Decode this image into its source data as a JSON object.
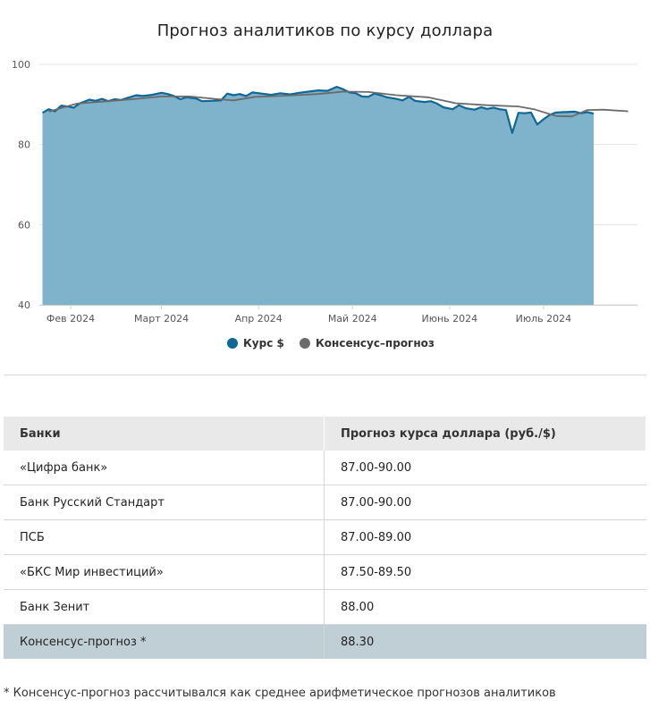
{
  "chart_data": {
    "type": "area",
    "title": "Прогноз аналитиков по курсу доллара",
    "ylim": [
      40,
      100
    ],
    "yticks": [
      "100",
      "80",
      "60",
      "40"
    ],
    "xlim": [
      "2024-01-22",
      "2024-07-31"
    ],
    "xticks": [
      {
        "date": "2024-02-01",
        "label": "Фев 2024"
      },
      {
        "date": "2024-03-01",
        "label": "Март 2024"
      },
      {
        "date": "2024-04-01",
        "label": "Апр 2024"
      },
      {
        "date": "2024-05-01",
        "label": "Май 2024"
      },
      {
        "date": "2024-06-01",
        "label": "Июнь 2024"
      },
      {
        "date": "2024-07-01",
        "label": "Июль 2024"
      }
    ],
    "grid": true,
    "legend_position": "bottom-center",
    "series": [
      {
        "name": "Курс $",
        "type": "area",
        "color": "#0e6796",
        "fill": "#7fb2cb",
        "points": [
          [
            "2024-01-23",
            87.9
          ],
          [
            "2024-01-25",
            88.8
          ],
          [
            "2024-01-27",
            88.3
          ],
          [
            "2024-01-29",
            89.7
          ],
          [
            "2024-01-31",
            89.5
          ],
          [
            "2024-02-02",
            89.2
          ],
          [
            "2024-02-04",
            90.3
          ],
          [
            "2024-02-07",
            91.2
          ],
          [
            "2024-02-09",
            90.9
          ],
          [
            "2024-02-11",
            91.4
          ],
          [
            "2024-02-13",
            90.8
          ],
          [
            "2024-02-15",
            91.3
          ],
          [
            "2024-02-17",
            91.1
          ],
          [
            "2024-02-19",
            91.6
          ],
          [
            "2024-02-22",
            92.3
          ],
          [
            "2024-02-24",
            92.1
          ],
          [
            "2024-02-27",
            92.4
          ],
          [
            "2024-03-01",
            92.9
          ],
          [
            "2024-03-03",
            92.6
          ],
          [
            "2024-03-05",
            92.1
          ],
          [
            "2024-03-07",
            91.3
          ],
          [
            "2024-03-09",
            91.8
          ],
          [
            "2024-03-12",
            91.5
          ],
          [
            "2024-03-14",
            90.8
          ],
          [
            "2024-03-17",
            90.9
          ],
          [
            "2024-03-20",
            91.0
          ],
          [
            "2024-03-22",
            92.7
          ],
          [
            "2024-03-24",
            92.3
          ],
          [
            "2024-03-26",
            92.6
          ],
          [
            "2024-03-28",
            92.1
          ],
          [
            "2024-03-30",
            93.0
          ],
          [
            "2024-04-02",
            92.7
          ],
          [
            "2024-04-05",
            92.4
          ],
          [
            "2024-04-08",
            92.8
          ],
          [
            "2024-04-11",
            92.5
          ],
          [
            "2024-04-14",
            92.9
          ],
          [
            "2024-04-17",
            93.2
          ],
          [
            "2024-04-20",
            93.5
          ],
          [
            "2024-04-23",
            93.4
          ],
          [
            "2024-04-26",
            94.4
          ],
          [
            "2024-04-28",
            93.8
          ],
          [
            "2024-04-30",
            93.0
          ],
          [
            "2024-05-02",
            92.8
          ],
          [
            "2024-05-04",
            92.0
          ],
          [
            "2024-05-06",
            91.9
          ],
          [
            "2024-05-08",
            92.7
          ],
          [
            "2024-05-10",
            92.3
          ],
          [
            "2024-05-12",
            91.8
          ],
          [
            "2024-05-15",
            91.4
          ],
          [
            "2024-05-17",
            91.0
          ],
          [
            "2024-05-19",
            91.9
          ],
          [
            "2024-05-21",
            90.9
          ],
          [
            "2024-05-24",
            90.6
          ],
          [
            "2024-05-26",
            90.8
          ],
          [
            "2024-05-28",
            90.2
          ],
          [
            "2024-05-30",
            89.3
          ],
          [
            "2024-06-02",
            88.8
          ],
          [
            "2024-06-04",
            89.8
          ],
          [
            "2024-06-06",
            89.1
          ],
          [
            "2024-06-09",
            88.7
          ],
          [
            "2024-06-11",
            89.3
          ],
          [
            "2024-06-13",
            88.9
          ],
          [
            "2024-06-15",
            89.2
          ],
          [
            "2024-06-17",
            88.8
          ],
          [
            "2024-06-19",
            88.6
          ],
          [
            "2024-06-21",
            82.9
          ],
          [
            "2024-06-23",
            87.9
          ],
          [
            "2024-06-25",
            87.8
          ],
          [
            "2024-06-27",
            88.0
          ],
          [
            "2024-06-29",
            85.0
          ],
          [
            "2024-07-01",
            86.3
          ],
          [
            "2024-07-03",
            87.4
          ],
          [
            "2024-07-05",
            88.0
          ],
          [
            "2024-07-08",
            88.1
          ],
          [
            "2024-07-11",
            88.2
          ],
          [
            "2024-07-13",
            87.8
          ],
          [
            "2024-07-15",
            88.1
          ],
          [
            "2024-07-17",
            87.7
          ]
        ]
      },
      {
        "name": "Консенсус–прогноз",
        "type": "line",
        "color": "#6b6b6b",
        "points": [
          [
            "2024-01-25",
            88.2
          ],
          [
            "2024-02-03",
            90.2
          ],
          [
            "2024-02-13",
            90.8
          ],
          [
            "2024-02-22",
            91.4
          ],
          [
            "2024-03-01",
            92.0
          ],
          [
            "2024-03-10",
            92.0
          ],
          [
            "2024-03-18",
            91.4
          ],
          [
            "2024-03-24",
            91.0
          ],
          [
            "2024-03-31",
            91.9
          ],
          [
            "2024-04-10",
            92.2
          ],
          [
            "2024-04-20",
            92.6
          ],
          [
            "2024-04-28",
            93.2
          ],
          [
            "2024-05-06",
            93.1
          ],
          [
            "2024-05-15",
            92.3
          ],
          [
            "2024-05-25",
            91.8
          ],
          [
            "2024-06-03",
            90.3
          ],
          [
            "2024-06-13",
            89.8
          ],
          [
            "2024-06-23",
            89.5
          ],
          [
            "2024-06-28",
            88.8
          ],
          [
            "2024-07-05",
            87.1
          ],
          [
            "2024-07-10",
            87.0
          ],
          [
            "2024-07-15",
            88.6
          ],
          [
            "2024-07-20",
            88.7
          ],
          [
            "2024-07-28",
            88.3
          ]
        ]
      }
    ]
  },
  "legend": [
    {
      "label": "Курс $",
      "color": "#0e6796"
    },
    {
      "label": "Консенсус–прогноз",
      "color": "#6b6b6b"
    }
  ],
  "table": {
    "headers": [
      "Банки",
      "Прогноз курса доллара (руб./$)"
    ],
    "rows": [
      [
        "«Цифра банк»",
        "87.00-90.00"
      ],
      [
        "Банк Русский Стандарт",
        "87.00-90.00"
      ],
      [
        "ПСБ",
        "87.00-89.00"
      ],
      [
        "«БКС Мир инвестиций»",
        "87.50-89.50"
      ],
      [
        "Банк Зенит",
        "88.00"
      ]
    ],
    "consensus_row": [
      "Консенсус-прогноз *",
      "88.30"
    ]
  },
  "footnote": "* Консенсус-прогноз рассчитывался как среднее арифметическое прогнозов аналитиков"
}
